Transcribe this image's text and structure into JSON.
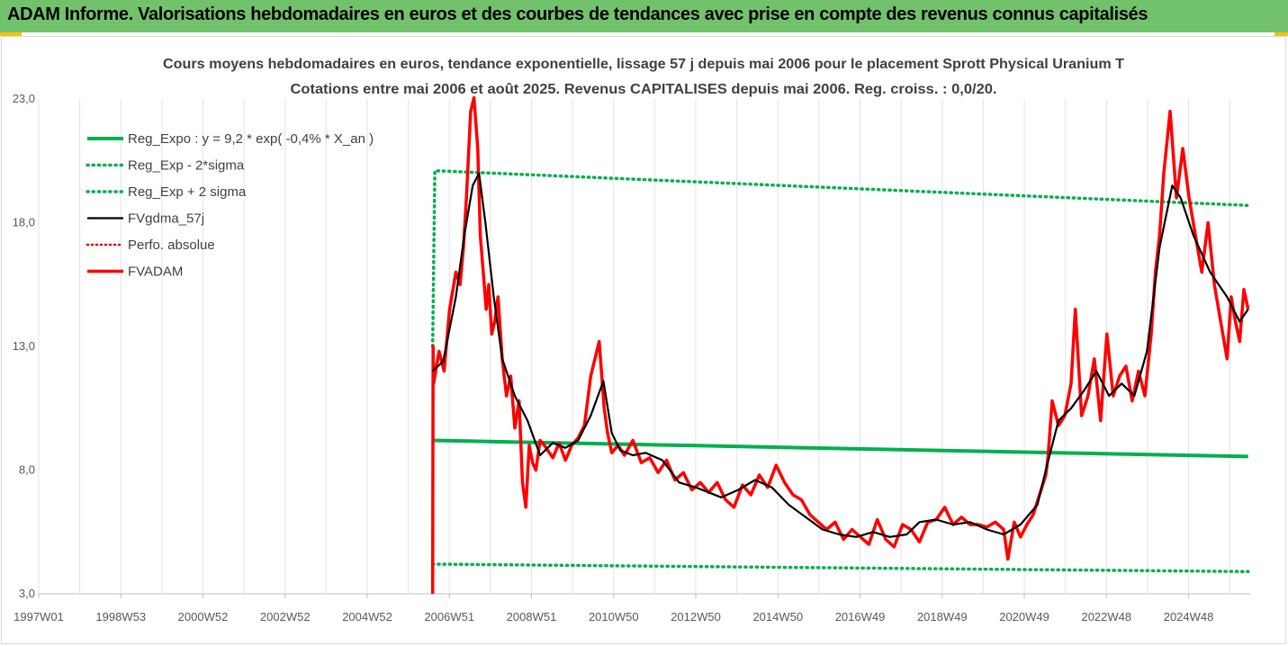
{
  "banner": {
    "title": "ADAM Informe. Valorisations hebdomadaires en euros et des courbes de tendances avec prise en compte des revenus connus capitalisés"
  },
  "colors": {
    "banner_bg": "#72c26c",
    "accent_yellow": "#f1c40f",
    "reg_expo": "#00b050",
    "fv_line": "#000000",
    "fvadam": "#ff0000",
    "perfo": "#e00000"
  },
  "chart_data": {
    "type": "line",
    "title": "Cours moyens hebdomadaires en euros, tendance exponentielle, lissage 57 j depuis mai 2006 pour le placement Sprott Physical Uranium T",
    "subtitle": "Cotations entre mai 2006 et août 2025.  Revenus CAPITALISES depuis mai 2006. Reg. croiss. : 0,0/20.",
    "xlabel": "",
    "ylabel": "",
    "ylim": [
      3,
      23
    ],
    "xlim": [
      1997.0,
      2025.75
    ],
    "y_ticks": [
      "3,0",
      "8,0",
      "13,0",
      "18,0",
      "23,0"
    ],
    "x_ticks": [
      "1997W01",
      "1998W53",
      "2000W52",
      "2002W52",
      "2004W52",
      "2006W51",
      "2008W51",
      "2010W50",
      "2012W50",
      "2014W50",
      "2016W49",
      "2018W49",
      "2020W49",
      "2022W48",
      "2024W48"
    ],
    "grid": "vertical",
    "legend_position": "top-left",
    "series": [
      {
        "name": "Reg_Expo : y = 9,2 * exp( -0,4% *  X_an )",
        "style": "solid-thick",
        "x": [
          2006.35,
          2025.7
        ],
        "y": [
          9.2,
          8.55
        ]
      },
      {
        "name": "Reg_Exp - 2*sigma",
        "style": "dotted",
        "x": [
          2006.35,
          2025.7
        ],
        "y": [
          4.2,
          3.9
        ]
      },
      {
        "name": "Reg_Exp + 2 sigma",
        "style": "dotted",
        "x": [
          2006.35,
          2006.4,
          2025.7
        ],
        "y": [
          13.0,
          20.1,
          18.7
        ]
      },
      {
        "name": "FVgdma_57j",
        "style": "solid",
        "x": [
          2006.35,
          2006.6,
          2006.9,
          2007.1,
          2007.3,
          2007.45,
          2007.6,
          2007.8,
          2008.0,
          2008.3,
          2008.6,
          2008.9,
          2009.2,
          2009.5,
          2009.8,
          2010.1,
          2010.4,
          2010.6,
          2010.8,
          2011.1,
          2011.4,
          2011.8,
          2012.2,
          2012.6,
          2012.9,
          2013.2,
          2013.6,
          2014.0,
          2014.4,
          2014.8,
          2015.2,
          2015.6,
          2016.0,
          2016.4,
          2016.8,
          2017.2,
          2017.6,
          2017.9,
          2018.3,
          2018.7,
          2019.1,
          2019.5,
          2019.9,
          2020.3,
          2020.7,
          2020.9,
          2021.2,
          2021.5,
          2021.8,
          2022.1,
          2022.4,
          2022.7,
          2023.0,
          2023.3,
          2023.6,
          2023.9,
          2024.1,
          2024.4,
          2024.8,
          2025.2,
          2025.5,
          2025.7
        ],
        "y": [
          12.0,
          12.4,
          15.0,
          17.5,
          19.5,
          20.0,
          18.0,
          15.0,
          12.5,
          11.0,
          10.0,
          8.6,
          9.1,
          8.9,
          9.2,
          10.2,
          11.6,
          9.5,
          8.8,
          8.6,
          8.7,
          8.4,
          7.5,
          7.3,
          7.1,
          6.9,
          7.2,
          7.6,
          7.3,
          6.6,
          6.1,
          5.6,
          5.4,
          5.3,
          5.5,
          5.3,
          5.4,
          5.9,
          6.0,
          5.8,
          5.9,
          5.6,
          5.4,
          5.8,
          6.6,
          8.0,
          10.0,
          10.5,
          11.2,
          12.0,
          11.0,
          11.5,
          11.0,
          12.8,
          17.0,
          19.5,
          19.0,
          17.5,
          16.0,
          15.0,
          14.0,
          14.5
        ]
      },
      {
        "name": "Perfo. absolue",
        "style": "dotted",
        "x": [],
        "y": []
      },
      {
        "name": "FVADAM",
        "style": "solid-thick",
        "x": [
          2006.35,
          2006.36,
          2006.37,
          2006.5,
          2006.62,
          2006.75,
          2006.9,
          2007.0,
          2007.08,
          2007.15,
          2007.25,
          2007.33,
          2007.42,
          2007.48,
          2007.55,
          2007.62,
          2007.68,
          2007.75,
          2007.82,
          2007.9,
          2008.0,
          2008.1,
          2008.2,
          2008.3,
          2008.4,
          2008.48,
          2008.56,
          2008.64,
          2008.72,
          2008.8,
          2008.9,
          2009.0,
          2009.2,
          2009.35,
          2009.5,
          2009.65,
          2009.8,
          2009.95,
          2010.1,
          2010.2,
          2010.3,
          2010.42,
          2010.5,
          2010.6,
          2010.75,
          2010.9,
          2011.1,
          2011.3,
          2011.5,
          2011.7,
          2011.9,
          2012.1,
          2012.3,
          2012.5,
          2012.7,
          2012.9,
          2013.1,
          2013.3,
          2013.5,
          2013.7,
          2013.9,
          2014.1,
          2014.3,
          2014.5,
          2014.7,
          2014.9,
          2015.1,
          2015.3,
          2015.5,
          2015.7,
          2015.9,
          2016.1,
          2016.3,
          2016.5,
          2016.7,
          2016.9,
          2017.1,
          2017.3,
          2017.5,
          2017.7,
          2017.9,
          2018.1,
          2018.3,
          2018.5,
          2018.7,
          2018.9,
          2019.1,
          2019.3,
          2019.5,
          2019.7,
          2019.9,
          2020.0,
          2020.15,
          2020.3,
          2020.45,
          2020.6,
          2020.75,
          2020.9,
          2020.95,
          2021.05,
          2021.2,
          2021.35,
          2021.5,
          2021.6,
          2021.75,
          2021.9,
          2022.05,
          2022.2,
          2022.35,
          2022.5,
          2022.65,
          2022.8,
          2022.95,
          2023.1,
          2023.25,
          2023.4,
          2023.5,
          2023.6,
          2023.7,
          2023.85,
          2024.0,
          2024.15,
          2024.3,
          2024.45,
          2024.6,
          2024.75,
          2024.9,
          2025.05,
          2025.2,
          2025.3,
          2025.4,
          2025.5,
          2025.6,
          2025.7
        ],
        "y": [
          3.0,
          13.0,
          11.5,
          12.8,
          12.0,
          14.5,
          16.0,
          15.5,
          17.0,
          19.0,
          22.5,
          24.0,
          21.0,
          17.5,
          16.0,
          14.5,
          15.5,
          13.5,
          14.0,
          15.0,
          12.5,
          11.0,
          11.8,
          9.7,
          10.8,
          7.5,
          6.5,
          9.0,
          8.3,
          8.0,
          9.2,
          9.0,
          8.5,
          9.1,
          8.4,
          9.0,
          9.3,
          9.8,
          11.8,
          12.5,
          13.2,
          10.5,
          9.5,
          8.7,
          9.0,
          8.6,
          9.2,
          8.3,
          8.5,
          7.9,
          8.4,
          7.6,
          7.9,
          7.2,
          7.5,
          7.1,
          7.5,
          6.8,
          6.5,
          7.4,
          7.0,
          7.8,
          7.3,
          8.2,
          7.5,
          7.0,
          6.8,
          6.2,
          5.9,
          5.6,
          5.9,
          5.2,
          5.6,
          5.3,
          5.0,
          6.0,
          5.2,
          4.9,
          5.8,
          5.6,
          5.1,
          5.9,
          6.0,
          6.5,
          5.8,
          6.1,
          5.8,
          5.8,
          5.7,
          5.9,
          5.6,
          4.4,
          5.9,
          5.3,
          5.8,
          6.2,
          7.0,
          7.8,
          8.5,
          10.8,
          9.8,
          10.2,
          11.5,
          14.5,
          10.2,
          11.0,
          12.5,
          10.0,
          13.5,
          11.0,
          11.8,
          12.2,
          10.8,
          12.0,
          11.0,
          13.5,
          16.0,
          17.5,
          20.0,
          22.5,
          19.0,
          21.0,
          19.0,
          17.5,
          16.0,
          18.0,
          15.5,
          14.0,
          12.5,
          15.0,
          14.0,
          13.2,
          15.3,
          14.5
        ]
      }
    ]
  }
}
